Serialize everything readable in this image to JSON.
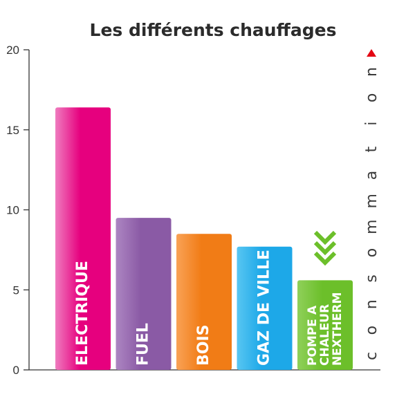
{
  "chart_data": {
    "type": "bar",
    "title": "Les différents chauffages",
    "ylabel": "consommation",
    "ylim": [
      0,
      20
    ],
    "yticks": [
      0,
      5,
      10,
      15,
      20
    ],
    "categories": [
      "ELECTRIQUE",
      "FUEL",
      "BOIS",
      "GAZ DE VILLE",
      "POMPE A CHALEUR NEXTHERM"
    ],
    "category_lines": [
      [
        "ELECTRIQUE"
      ],
      [
        "FUEL"
      ],
      [
        "BOIS"
      ],
      [
        "GAZ DE VILLE"
      ],
      [
        "POMPE A",
        "CHALEUR",
        "NEXTHERM"
      ]
    ],
    "values": [
      16.4,
      9.5,
      8.5,
      7.7,
      5.6
    ],
    "colors": {
      "ELECTRIQUE": [
        "#ef7cbf",
        "#e6007e"
      ],
      "FUEL": [
        "#ad86c2",
        "#8a5aa5"
      ],
      "BOIS": [
        "#f9a256",
        "#f17c16"
      ],
      "GAZ DE VILLE": [
        "#58c6f2",
        "#1da8e8"
      ],
      "POMPE A CHALEUR NEXTHERM": [
        "#8fd05a",
        "#6cbf2a"
      ]
    },
    "highlight_marker": "green-triple-chevron-down",
    "ylabel_arrow_color": "#e30613",
    "grid": false,
    "legend": "none"
  }
}
